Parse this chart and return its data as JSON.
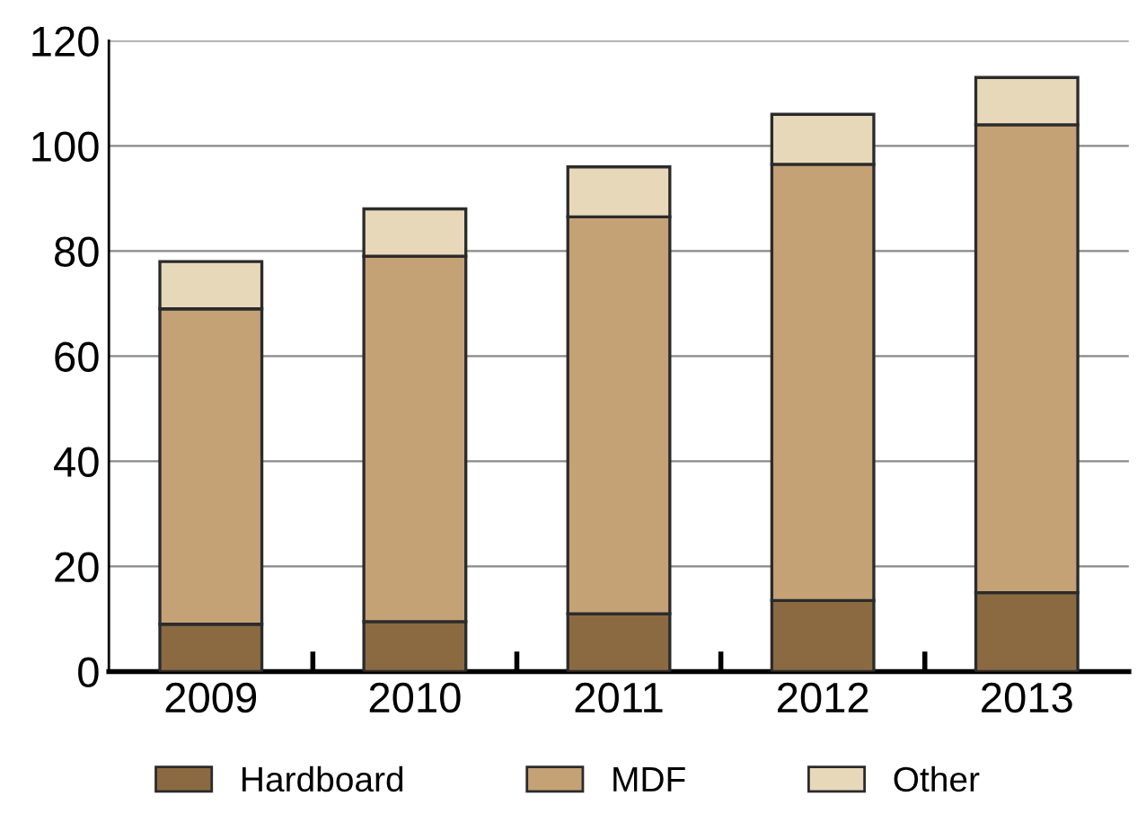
{
  "chart_data": {
    "type": "bar",
    "stacked": true,
    "categories": [
      "2009",
      "2010",
      "2011",
      "2012",
      "2013"
    ],
    "series": [
      {
        "name": "Hardboard",
        "color": "#8b6a42",
        "values": [
          9,
          9.5,
          11,
          13.5,
          15
        ]
      },
      {
        "name": "MDF",
        "color": "#c4a276",
        "values": [
          60,
          69.5,
          75.5,
          83,
          89
        ]
      },
      {
        "name": "Other",
        "color": "#e8d8ba",
        "values": [
          9,
          9,
          9.5,
          9.5,
          9
        ]
      }
    ],
    "ylim": [
      0,
      120
    ],
    "yticks": [
      0,
      20,
      40,
      60,
      80,
      100,
      120
    ],
    "grid": "y",
    "legend": "bottom"
  }
}
